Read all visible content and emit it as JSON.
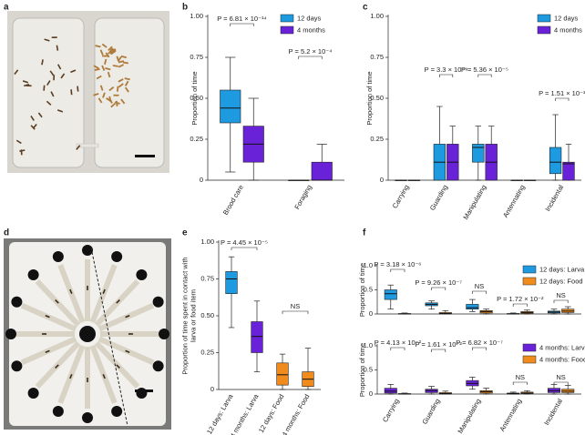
{
  "image_panels": [
    {
      "label": "a"
    },
    {
      "label": "d"
    }
  ],
  "chart_data": [
    {
      "type": "box",
      "panel": "b",
      "ylabel": [
        "Proportion of time"
      ],
      "categories": [
        "Brood care",
        "Foraging"
      ],
      "series": [
        {
          "name": "12 days",
          "color": "#1e9be0",
          "values": [
            {
              "min": 0.05,
              "q1": 0.35,
              "median": 0.44,
              "q3": 0.55,
              "max": 0.75
            },
            {
              "min": 0,
              "q1": 0,
              "median": 0,
              "q3": 0,
              "max": 0
            }
          ]
        },
        {
          "name": "4 months",
          "color": "#6a22d8",
          "values": [
            {
              "min": 0,
              "q1": 0.11,
              "median": 0.22,
              "q3": 0.33,
              "max": 0.5
            },
            {
              "min": 0,
              "q1": 0,
              "median": 0,
              "q3": 0.11,
              "max": 0.22
            }
          ]
        }
      ],
      "ylim": [
        0,
        1
      ],
      "yticks": [
        0,
        0.25,
        {
          "value": 0.5,
          "label": "0.50"
        },
        0.75,
        {
          "value": 1,
          "label": "1.00"
        }
      ],
      "annotations": [
        "P = 6.81 × 10⁻¹⁴",
        "P = 5.2 × 10⁻⁴"
      ]
    },
    {
      "type": "box",
      "panel": "c",
      "ylabel": [
        "Proportion of time"
      ],
      "categories": [
        "Carrying",
        "Guarding",
        "Manipulating",
        "Antennating",
        "Incidental"
      ],
      "series": [
        {
          "name": "12 days",
          "color": "#1e9be0",
          "values": [
            {
              "min": 0,
              "q1": 0,
              "median": 0,
              "q3": 0,
              "max": 0
            },
            {
              "min": 0,
              "q1": 0,
              "median": 0.11,
              "q3": 0.22,
              "max": 0.45
            },
            {
              "min": 0,
              "q1": 0.11,
              "median": 0.2,
              "q3": 0.22,
              "max": 0.33
            },
            {
              "min": 0,
              "q1": 0,
              "median": 0,
              "q3": 0,
              "max": 0
            },
            {
              "min": 0,
              "q1": 0.04,
              "median": 0.11,
              "q3": 0.2,
              "max": 0.4
            }
          ]
        },
        {
          "name": "4 months",
          "color": "#6a22d8",
          "values": [
            {
              "min": 0,
              "q1": 0,
              "median": 0,
              "q3": 0,
              "max": 0
            },
            {
              "min": 0,
              "q1": 0,
              "median": 0.11,
              "q3": 0.22,
              "max": 0.33
            },
            {
              "min": 0,
              "q1": 0,
              "median": 0.11,
              "q3": 0.22,
              "max": 0.33
            },
            {
              "min": 0,
              "q1": 0,
              "median": 0,
              "q3": 0,
              "max": 0
            },
            {
              "min": 0,
              "q1": 0,
              "median": 0.1,
              "q3": 0.11,
              "max": 0.22
            }
          ]
        }
      ],
      "ylim": [
        0,
        1
      ],
      "yticks": [
        0,
        0.25,
        {
          "value": 0.5,
          "label": "0.50"
        },
        0.75,
        {
          "value": 1,
          "label": "1.00"
        }
      ],
      "annotations": [
        "P = 3.3 × 10⁻⁹",
        "P = 5.36 × 10⁻⁵",
        "P = 1.51 × 10⁻³"
      ]
    },
    {
      "type": "box",
      "panel": "e",
      "ylabel": [
        "Proportion of time spent in contact with",
        "larva or food item"
      ],
      "categories": [
        "12 days: Larva",
        "4 months: Larva",
        "12 days: Food",
        "4 months: Food"
      ],
      "series": [
        {
          "colors": [
            "#1e9be0",
            "#6a22d8",
            "#f08c1e",
            "#f08c1e"
          ],
          "values": [
            {
              "min": 0.42,
              "q1": 0.65,
              "median": 0.75,
              "q3": 0.8,
              "max": 0.9
            },
            {
              "min": 0.12,
              "q1": 0.25,
              "median": 0.36,
              "q3": 0.46,
              "max": 0.6
            },
            {
              "min": 0,
              "q1": 0.03,
              "median": 0.1,
              "q3": 0.18,
              "max": 0.24
            },
            {
              "min": 0,
              "q1": 0.02,
              "median": 0.07,
              "q3": 0.12,
              "max": 0.28
            }
          ]
        }
      ],
      "ylim": [
        0,
        1
      ],
      "yticks": [
        0,
        0.25,
        {
          "value": 0.5,
          "label": "0.50"
        },
        0.75,
        {
          "value": 1,
          "label": "1.00"
        }
      ],
      "annotations": [
        "P = 4.45 × 10⁻⁵",
        "NS"
      ]
    },
    {
      "type": "box",
      "panel": "f",
      "ylabel": [
        "Proportion of time"
      ],
      "categories": [
        "Carrying",
        "Guarding",
        "Manipulating",
        "Antennating",
        "Incidental"
      ],
      "series": [
        {
          "name": "12 days: Larva",
          "color": "#1e9be0",
          "values": [
            {
              "min": 0.1,
              "q1": 0.3,
              "median": 0.42,
              "q3": 0.5,
              "max": 0.6
            },
            {
              "min": 0.1,
              "q1": 0.17,
              "median": 0.2,
              "q3": 0.23,
              "max": 0.27
            },
            {
              "min": 0.05,
              "q1": 0.1,
              "median": 0.13,
              "q3": 0.2,
              "max": 0.3
            },
            {
              "min": 0,
              "q1": 0,
              "median": 0,
              "q3": 0.01,
              "max": 0.02
            },
            {
              "min": 0,
              "q1": 0.02,
              "median": 0.04,
              "q3": 0.06,
              "max": 0.1
            }
          ]
        },
        {
          "name": "12 days: Food",
          "color": "#f08c1e",
          "values": [
            {
              "min": 0,
              "q1": 0,
              "median": 0,
              "q3": 0.01,
              "max": 0.02
            },
            {
              "min": 0,
              "q1": 0,
              "median": 0.01,
              "q3": 0.03,
              "max": 0.07
            },
            {
              "min": 0,
              "q1": 0.02,
              "median": 0.05,
              "q3": 0.07,
              "max": 0.1
            },
            {
              "min": 0,
              "q1": 0.01,
              "median": 0.03,
              "q3": 0.05,
              "max": 0.08
            },
            {
              "min": 0,
              "q1": 0.03,
              "median": 0.06,
              "q3": 0.1,
              "max": 0.15
            }
          ]
        }
      ],
      "ylim": [
        0,
        1
      ],
      "yticks": [
        0,
        0.5,
        {
          "value": 1,
          "label": "1.0"
        }
      ],
      "annotations": [
        "P = 3.18 × 10⁻⁶",
        "P = 9.26 × 10⁻⁷",
        "NS",
        "P = 1.72 × 10⁻²",
        "NS"
      ]
    },
    {
      "type": "box",
      "ylabel": [
        "Proportion of time"
      ],
      "categories": [
        "Carrying",
        "Guarding",
        "Manipulating",
        "Antennating",
        "Incidental"
      ],
      "series": [
        {
          "name": "4 months: Larva",
          "color": "#6a22d8",
          "values": [
            {
              "min": 0,
              "q1": 0.02,
              "median": 0.06,
              "q3": 0.12,
              "max": 0.2
            },
            {
              "min": 0,
              "q1": 0.03,
              "median": 0.07,
              "q3": 0.1,
              "max": 0.16
            },
            {
              "min": 0.1,
              "q1": 0.17,
              "median": 0.22,
              "q3": 0.28,
              "max": 0.35
            },
            {
              "min": 0,
              "q1": 0,
              "median": 0.01,
              "q3": 0.02,
              "max": 0.04
            },
            {
              "min": 0,
              "q1": 0.03,
              "median": 0.07,
              "q3": 0.12,
              "max": 0.2
            }
          ]
        },
        {
          "name": "4 months: Food",
          "color": "#f08c1e",
          "values": [
            {
              "min": 0,
              "q1": 0,
              "median": 0,
              "q3": 0.01,
              "max": 0.02
            },
            {
              "min": 0,
              "q1": 0,
              "median": 0.01,
              "q3": 0.03,
              "max": 0.06
            },
            {
              "min": 0,
              "q1": 0.02,
              "median": 0.05,
              "q3": 0.07,
              "max": 0.12
            },
            {
              "min": 0,
              "q1": 0.01,
              "median": 0.02,
              "q3": 0.04,
              "max": 0.07
            },
            {
              "min": 0,
              "q1": 0.03,
              "median": 0.06,
              "q3": 0.1,
              "max": 0.18
            }
          ]
        }
      ],
      "ylim": [
        0,
        1
      ],
      "yticks": [
        0,
        0.5,
        {
          "value": 1,
          "label": "1.0"
        }
      ],
      "annotations": [
        "P = 4.13 × 10⁻²",
        "P = 1.61 × 10⁻²",
        "P = 6.82 × 10⁻⁷",
        "NS",
        "NS"
      ]
    }
  ]
}
